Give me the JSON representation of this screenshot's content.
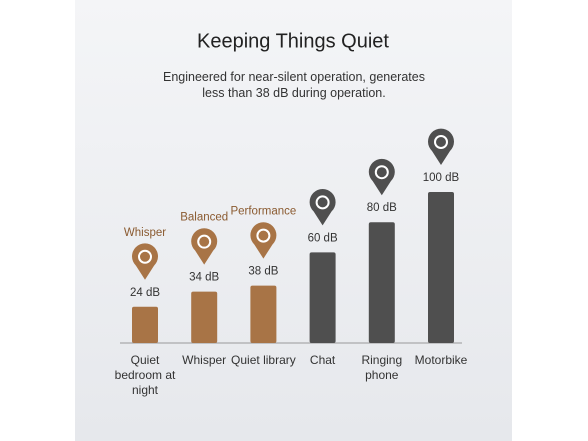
{
  "chart_data": {
    "type": "bar",
    "title": "Keeping Things Quiet",
    "subtitle": "Engineered for near-silent operation, generates less than 38 dB during operation.",
    "categories": [
      "Quiet bedroom at night",
      "Whisper",
      "Quiet library",
      "Chat",
      "Ringing phone",
      "Motorbike"
    ],
    "values": [
      24,
      34,
      38,
      60,
      80,
      100
    ],
    "value_labels": [
      "24 dB",
      "34 dB",
      "38 dB",
      "60 dB",
      "80 dB",
      "100 dB"
    ],
    "modes": [
      "Whisper",
      "Balanced",
      "Performance",
      null,
      null,
      null
    ],
    "colors": [
      "#a87446",
      "#a87446",
      "#a87446",
      "#4f4f4f",
      "#4f4f4f",
      "#4f4f4f"
    ]
  }
}
